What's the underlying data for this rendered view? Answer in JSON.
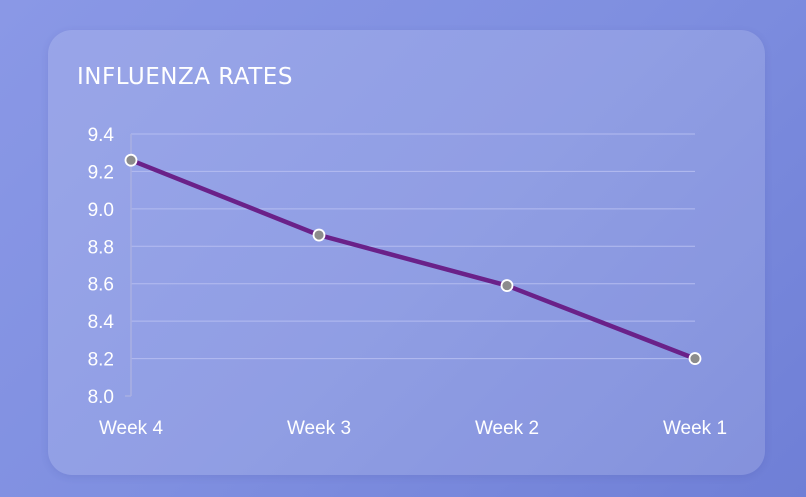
{
  "chart_data": {
    "type": "line",
    "title": "INFLUENZA RATES",
    "categories": [
      "Week 4",
      "Week 3",
      "Week 2",
      "Week 1"
    ],
    "series": [
      {
        "values": [
          9.26,
          8.86,
          8.59,
          8.2
        ]
      }
    ],
    "ylim": [
      8.0,
      9.4
    ],
    "yticks": [
      "8.0",
      "8.2",
      "8.4",
      "8.6",
      "8.8",
      "9.0",
      "9.2",
      "9.4"
    ],
    "grid": true,
    "colors": {
      "line": "#6a2189",
      "marker_fill": "#8c8c8c",
      "marker_stroke": "#ffffff",
      "grid": "#b4bcf0"
    }
  }
}
